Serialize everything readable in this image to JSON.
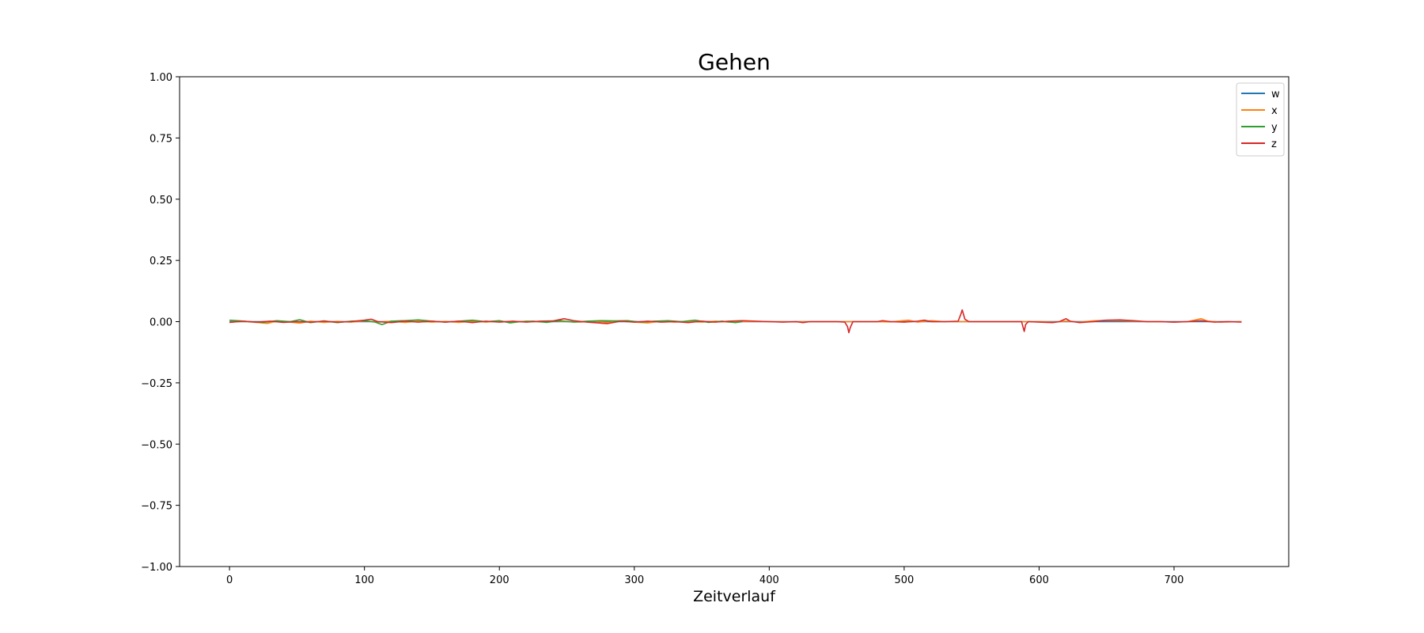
{
  "chart_data": {
    "type": "line",
    "title": "Gehen",
    "xlabel": "Zeitverlauf",
    "ylabel": "",
    "xlim": [
      -37,
      785
    ],
    "ylim": [
      -1.0,
      1.0
    ],
    "xticks": [
      0,
      100,
      200,
      300,
      400,
      500,
      600,
      700
    ],
    "yticks": [
      1.0,
      0.75,
      0.5,
      0.25,
      0.0,
      -0.25,
      -0.5,
      -0.75,
      -1.0
    ],
    "ytick_labels": [
      "1.00",
      "0.75",
      "0.50",
      "0.25",
      "0.00",
      "−0.25",
      "−0.50",
      "−0.75",
      "−1.00"
    ],
    "legend_position": "top-right",
    "grid": false,
    "series": [
      {
        "name": "w",
        "color": "#1f77b4",
        "points": [
          [
            0,
            0.0
          ],
          [
            750,
            0.0
          ]
        ]
      },
      {
        "name": "x",
        "color": "#ff7f0e",
        "points": [
          [
            0,
            -0.002
          ],
          [
            10,
            0.001
          ],
          [
            20,
            -0.003
          ],
          [
            28,
            -0.007
          ],
          [
            35,
            0.002
          ],
          [
            45,
            -0.002
          ],
          [
            52,
            -0.006
          ],
          [
            60,
            0.002
          ],
          [
            70,
            -0.003
          ],
          [
            80,
            0.001
          ],
          [
            90,
            -0.002
          ],
          [
            100,
            0.003
          ],
          [
            110,
            -0.002
          ],
          [
            120,
            0.002
          ],
          [
            130,
            -0.003
          ],
          [
            140,
            0.002
          ],
          [
            150,
            -0.002
          ],
          [
            160,
            0.001
          ],
          [
            170,
            -0.003
          ],
          [
            180,
            0.002
          ],
          [
            190,
            -0.002
          ],
          [
            200,
            0.002
          ],
          [
            210,
            -0.003
          ],
          [
            220,
            0.002
          ],
          [
            230,
            -0.001
          ],
          [
            240,
            0.003
          ],
          [
            250,
            0.0
          ],
          [
            260,
            -0.002
          ],
          [
            270,
            0.002
          ],
          [
            280,
            -0.003
          ],
          [
            290,
            0.002
          ],
          [
            300,
            -0.002
          ],
          [
            310,
            -0.005
          ],
          [
            320,
            0.002
          ],
          [
            330,
            -0.002
          ],
          [
            340,
            0.001
          ],
          [
            350,
            -0.002
          ],
          [
            360,
            0.002
          ],
          [
            370,
            -0.002
          ],
          [
            380,
            0.001
          ],
          [
            400,
            0.0
          ],
          [
            420,
            -0.001
          ],
          [
            440,
            0.0
          ],
          [
            460,
            0.0
          ],
          [
            480,
            0.0
          ],
          [
            490,
            -0.001
          ],
          [
            503,
            0.006
          ],
          [
            510,
            -0.002
          ],
          [
            520,
            0.004
          ],
          [
            530,
            0.0
          ],
          [
            545,
            0.0
          ],
          [
            560,
            0.0
          ],
          [
            580,
            0.0
          ],
          [
            600,
            0.0
          ],
          [
            610,
            -0.002
          ],
          [
            620,
            0.002
          ],
          [
            630,
            -0.002
          ],
          [
            640,
            0.003
          ],
          [
            650,
            0.005
          ],
          [
            660,
            0.004
          ],
          [
            670,
            0.002
          ],
          [
            680,
            0.0
          ],
          [
            690,
            0.0
          ],
          [
            700,
            -0.002
          ],
          [
            710,
            0.0
          ],
          [
            720,
            0.012
          ],
          [
            725,
            0.002
          ],
          [
            735,
            -0.002
          ],
          [
            750,
            0.0
          ]
        ]
      },
      {
        "name": "y",
        "color": "#2ca02c",
        "points": [
          [
            0,
            0.006
          ],
          [
            8,
            0.003
          ],
          [
            15,
            0.0
          ],
          [
            25,
            -0.003
          ],
          [
            35,
            0.004
          ],
          [
            45,
            0.0
          ],
          [
            52,
            0.008
          ],
          [
            60,
            -0.004
          ],
          [
            70,
            0.003
          ],
          [
            80,
            -0.004
          ],
          [
            90,
            0.002
          ],
          [
            100,
            0.004
          ],
          [
            108,
            -0.002
          ],
          [
            113,
            -0.012
          ],
          [
            120,
            0.002
          ],
          [
            130,
            0.004
          ],
          [
            140,
            0.007
          ],
          [
            150,
            0.002
          ],
          [
            160,
            -0.002
          ],
          [
            170,
            0.002
          ],
          [
            180,
            0.006
          ],
          [
            190,
            0.0
          ],
          [
            200,
            0.004
          ],
          [
            208,
            -0.005
          ],
          [
            215,
            0.0
          ],
          [
            225,
            0.002
          ],
          [
            235,
            -0.003
          ],
          [
            245,
            0.004
          ],
          [
            255,
            -0.002
          ],
          [
            265,
            0.002
          ],
          [
            275,
            0.004
          ],
          [
            285,
            0.003
          ],
          [
            295,
            0.004
          ],
          [
            305,
            -0.002
          ],
          [
            315,
            0.002
          ],
          [
            325,
            0.004
          ],
          [
            335,
            0.0
          ],
          [
            345,
            0.006
          ],
          [
            355,
            -0.003
          ],
          [
            365,
            0.002
          ],
          [
            375,
            -0.004
          ],
          [
            380,
            0.0
          ]
        ]
      },
      {
        "name": "z",
        "color": "#d62728",
        "points": [
          [
            0,
            -0.003
          ],
          [
            10,
            0.002
          ],
          [
            20,
            -0.002
          ],
          [
            30,
            0.002
          ],
          [
            40,
            -0.003
          ],
          [
            50,
            0.0
          ],
          [
            60,
            -0.002
          ],
          [
            70,
            0.002
          ],
          [
            80,
            -0.002
          ],
          [
            90,
            0.0
          ],
          [
            100,
            0.006
          ],
          [
            105,
            0.01
          ],
          [
            110,
            0.0
          ],
          [
            120,
            -0.004
          ],
          [
            130,
            0.002
          ],
          [
            140,
            -0.002
          ],
          [
            150,
            0.002
          ],
          [
            160,
            -0.002
          ],
          [
            170,
            0.002
          ],
          [
            180,
            -0.004
          ],
          [
            190,
            0.002
          ],
          [
            200,
            -0.002
          ],
          [
            210,
            0.002
          ],
          [
            220,
            -0.002
          ],
          [
            230,
            0.002
          ],
          [
            240,
            0.003
          ],
          [
            248,
            0.012
          ],
          [
            255,
            0.004
          ],
          [
            265,
            -0.002
          ],
          [
            275,
            -0.006
          ],
          [
            280,
            -0.008
          ],
          [
            290,
            0.002
          ],
          [
            300,
            -0.002
          ],
          [
            310,
            0.002
          ],
          [
            320,
            -0.002
          ],
          [
            330,
            0.0
          ],
          [
            340,
            -0.004
          ],
          [
            350,
            0.002
          ],
          [
            360,
            -0.002
          ],
          [
            370,
            0.002
          ],
          [
            380,
            0.004
          ],
          [
            390,
            0.002
          ],
          [
            400,
            0.0
          ],
          [
            410,
            -0.002
          ],
          [
            420,
            0.0
          ],
          [
            425,
            -0.004
          ],
          [
            430,
            0.0
          ],
          [
            440,
            0.0
          ],
          [
            450,
            0.0
          ],
          [
            456,
            -0.002
          ],
          [
            458,
            -0.02
          ],
          [
            459,
            -0.045
          ],
          [
            460,
            -0.025
          ],
          [
            462,
            0.0
          ],
          [
            470,
            0.0
          ],
          [
            480,
            0.0
          ],
          [
            484,
            0.004
          ],
          [
            490,
            0.0
          ],
          [
            500,
            -0.002
          ],
          [
            510,
            0.002
          ],
          [
            515,
            0.006
          ],
          [
            520,
            0.0
          ],
          [
            530,
            0.0
          ],
          [
            540,
            0.002
          ],
          [
            542,
            0.03
          ],
          [
            543,
            0.048
          ],
          [
            545,
            0.01
          ],
          [
            548,
            0.0
          ],
          [
            560,
            0.0
          ],
          [
            575,
            0.0
          ],
          [
            587,
            0.0
          ],
          [
            588,
            -0.02
          ],
          [
            589,
            -0.04
          ],
          [
            590,
            -0.012
          ],
          [
            592,
            0.0
          ],
          [
            600,
            -0.002
          ],
          [
            610,
            -0.004
          ],
          [
            615,
            0.0
          ],
          [
            620,
            0.012
          ],
          [
            623,
            0.002
          ],
          [
            630,
            -0.004
          ],
          [
            640,
            0.0
          ],
          [
            650,
            0.006
          ],
          [
            660,
            0.007
          ],
          [
            670,
            0.004
          ],
          [
            680,
            0.0
          ],
          [
            690,
            0.0
          ],
          [
            700,
            -0.002
          ],
          [
            710,
            0.0
          ],
          [
            720,
            0.004
          ],
          [
            730,
            -0.002
          ],
          [
            740,
            0.0
          ],
          [
            750,
            -0.002
          ]
        ]
      }
    ]
  }
}
